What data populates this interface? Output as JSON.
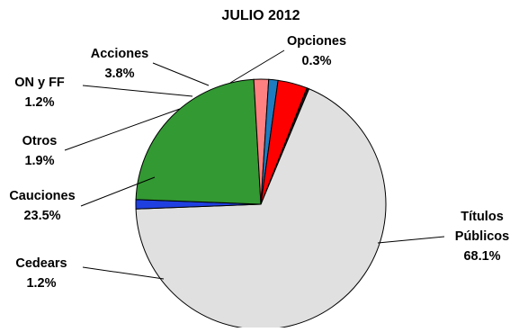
{
  "chart_data": {
    "type": "pie",
    "title": "JULIO 2012",
    "start_angle_deg": 21.6,
    "direction": "clockwise",
    "slices": [
      {
        "name": "Opciones",
        "value": 0.3,
        "label": "0.3%",
        "color": "#1a1a1a"
      },
      {
        "name": "Títulos Públicos",
        "value": 68.1,
        "label": "68.1%",
        "color": "#e0e0e0"
      },
      {
        "name": "Cedears",
        "value": 1.2,
        "label": "1.2%",
        "color": "#1f3fe0"
      },
      {
        "name": "Cauciones",
        "value": 23.5,
        "label": "23.5%",
        "color": "#339933"
      },
      {
        "name": "Otros",
        "value": 1.9,
        "label": "1.9%",
        "color": "#ff8080"
      },
      {
        "name": "ON y FF",
        "value": 1.2,
        "label": "1.2%",
        "color": "#1e7bbf"
      },
      {
        "name": "Acciones",
        "value": 3.8,
        "label": "3.8%",
        "color": "#ff0000"
      }
    ]
  }
}
